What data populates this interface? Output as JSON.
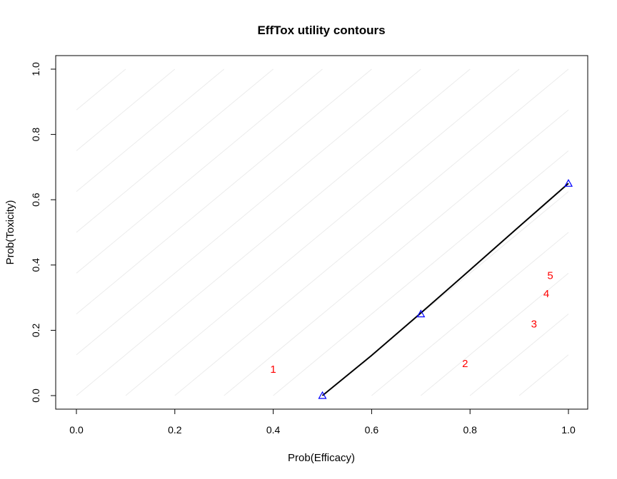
{
  "chart_data": {
    "type": "line",
    "title": "EffTox utility contours",
    "xlabel": "Prob(Efficacy)",
    "ylabel": "Prob(Toxicity)",
    "xlim": [
      0,
      1
    ],
    "ylim": [
      0,
      1
    ],
    "xticks": [
      "0.0",
      "0.2",
      "0.4",
      "0.6",
      "0.8",
      "1.0"
    ],
    "yticks": [
      "0.0",
      "0.2",
      "0.4",
      "0.6",
      "0.8",
      "1.0"
    ],
    "grid": false,
    "background_contours": {
      "color": "#ebebeb",
      "slope": 1.25,
      "x_intercepts": [
        -0.8,
        -0.7,
        -0.6,
        -0.5,
        -0.4,
        -0.3,
        -0.2,
        -0.1,
        0.0,
        0.1,
        0.2,
        0.3,
        0.4,
        0.5,
        0.6,
        0.7,
        0.8,
        0.9
      ]
    },
    "target_contour": {
      "color": "#000000",
      "x": [
        0.5,
        0.6,
        0.7,
        0.8,
        0.9,
        1.0
      ],
      "y": [
        0.0,
        0.123,
        0.253,
        0.385,
        0.518,
        0.65
      ]
    },
    "anchor_points": {
      "color": "#0000ff",
      "marker": "triangle-open",
      "x": [
        0.5,
        0.7,
        1.0
      ],
      "y": [
        0.0,
        0.25,
        0.65
      ]
    },
    "dose_labels": {
      "color": "#ff0000",
      "labels": [
        "1",
        "2",
        "3",
        "4",
        "5"
      ],
      "x": [
        0.4,
        0.79,
        0.93,
        0.955,
        0.963
      ],
      "y": [
        0.083,
        0.1,
        0.222,
        0.314,
        0.37
      ]
    }
  }
}
